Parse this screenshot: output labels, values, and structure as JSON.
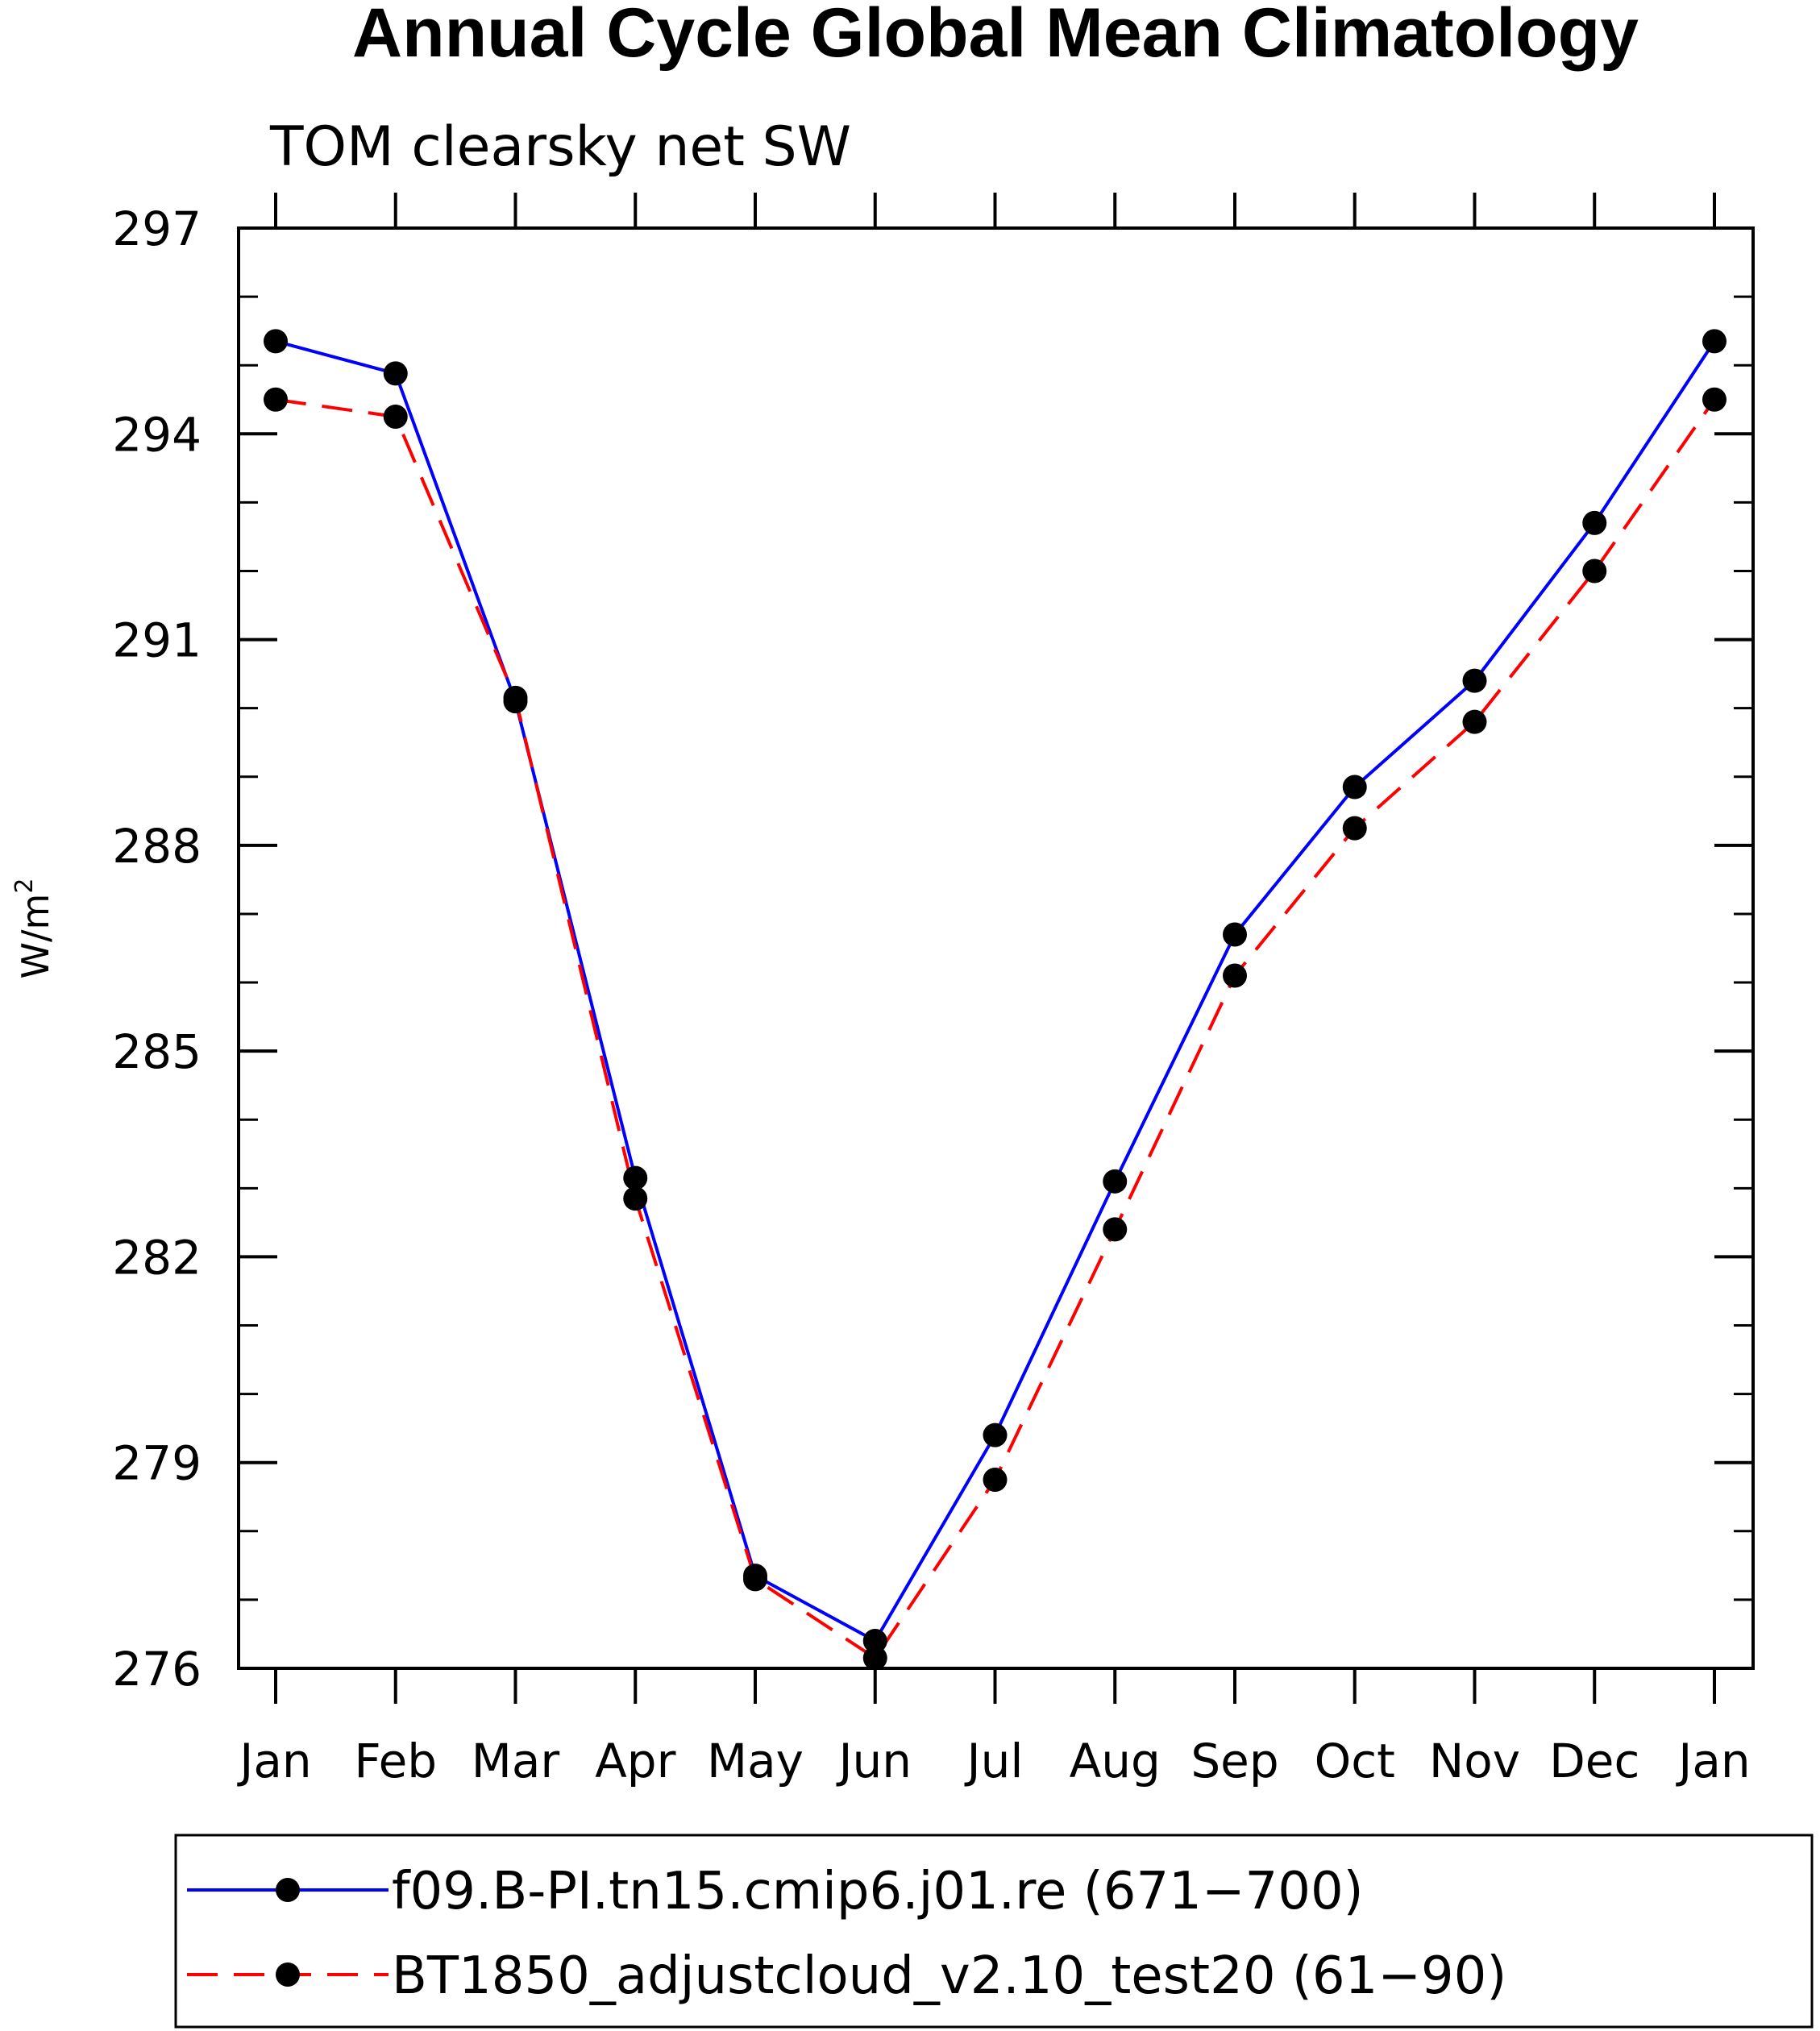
{
  "chart_data": {
    "type": "line",
    "title": "Annual Cycle Global Mean Climatology",
    "subtitle": "TOM clearsky net SW",
    "xlabel": "",
    "ylabel": "W/m",
    "ylabel_superscript": "2",
    "categories": [
      "Jan",
      "Feb",
      "Mar",
      "Apr",
      "May",
      "Jun",
      "Jul",
      "Aug",
      "Sep",
      "Oct",
      "Nov",
      "Dec",
      "Jan"
    ],
    "ylim": [
      276,
      297
    ],
    "yticks": [
      276,
      279,
      282,
      285,
      288,
      291,
      294,
      297
    ],
    "ytick_labels": [
      "276",
      "279",
      "282",
      "285",
      "288",
      "291",
      "294",
      "297"
    ],
    "series": [
      {
        "name": "f09.B-PI.tn15.cmip6.j01.re (671−700)",
        "color": "#0000ff",
        "dash": "solid",
        "marker": "filled-circle",
        "values": [
          295.35,
          294.88,
          290.1,
          283.15,
          277.35,
          276.4,
          279.4,
          283.1,
          286.7,
          288.85,
          290.4,
          292.7,
          295.35
        ]
      },
      {
        "name": "BT1850_adjustcloud_v2.10_test20 (61−90)",
        "color": "#ff0000",
        "dash": "dashed",
        "marker": "filled-circle",
        "values": [
          294.5,
          294.25,
          290.15,
          282.85,
          277.3,
          276.15,
          278.75,
          282.4,
          286.1,
          288.25,
          289.8,
          292.0,
          294.5
        ]
      }
    ]
  }
}
